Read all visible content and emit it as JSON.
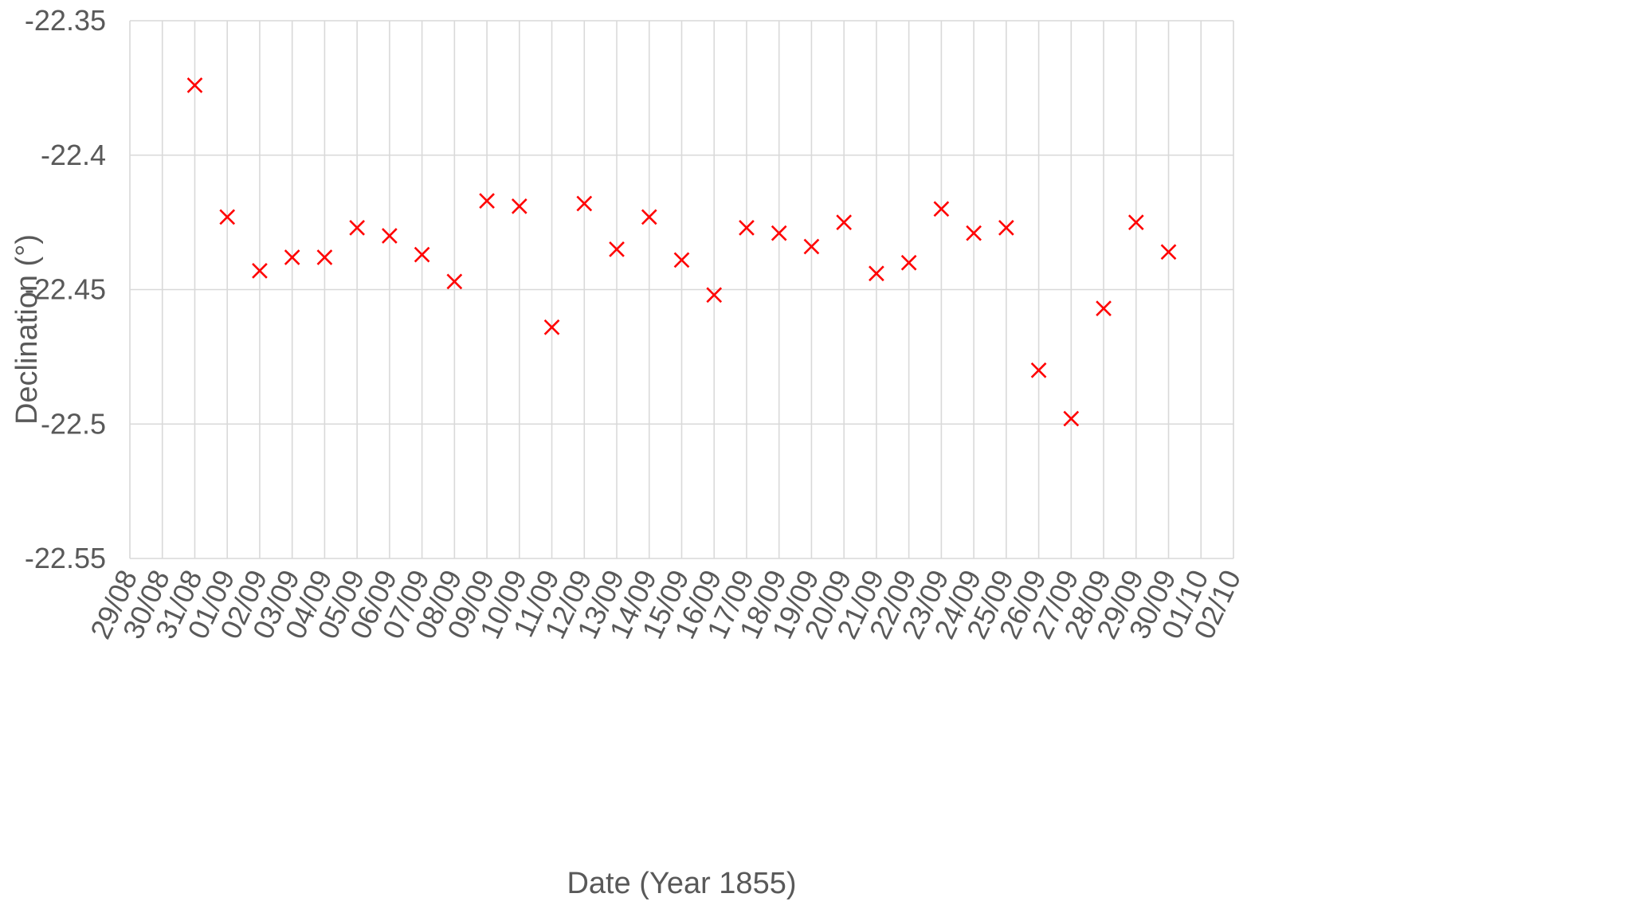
{
  "chart_data": {
    "type": "scatter",
    "title": "",
    "xlabel": "Date (Year 1855)",
    "ylabel": "Declination (°)",
    "x_ticks": [
      "29/08",
      "30/08",
      "31/08",
      "01/09",
      "02/09",
      "03/09",
      "04/09",
      "05/09",
      "06/09",
      "07/09",
      "08/09",
      "09/09",
      "10/09",
      "11/09",
      "12/09",
      "13/09",
      "14/09",
      "15/09",
      "16/09",
      "17/09",
      "18/09",
      "19/09",
      "20/09",
      "21/09",
      "22/09",
      "23/09",
      "24/09",
      "25/09",
      "26/09",
      "27/09",
      "28/09",
      "29/09",
      "30/09",
      "01/10",
      "02/10"
    ],
    "y_ticks": [
      "-22.35",
      "-22.4",
      "-22.45",
      "-22.5",
      "-22.55"
    ],
    "ylim": [
      -22.55,
      -22.35
    ],
    "grid": true,
    "legend": "none",
    "marker": "x",
    "marker_color": "#ff0000",
    "series": [
      {
        "points": [
          {
            "x": "31/08",
            "y": -22.374
          },
          {
            "x": "01/09",
            "y": -22.423
          },
          {
            "x": "02/09",
            "y": -22.443
          },
          {
            "x": "03/09",
            "y": -22.438
          },
          {
            "x": "04/09",
            "y": -22.438
          },
          {
            "x": "05/09",
            "y": -22.427
          },
          {
            "x": "06/09",
            "y": -22.43
          },
          {
            "x": "07/09",
            "y": -22.437
          },
          {
            "x": "08/09",
            "y": -22.447
          },
          {
            "x": "09/09",
            "y": -22.417
          },
          {
            "x": "10/09",
            "y": -22.419
          },
          {
            "x": "11/09",
            "y": -22.464
          },
          {
            "x": "12/09",
            "y": -22.418
          },
          {
            "x": "13/09",
            "y": -22.435
          },
          {
            "x": "14/09",
            "y": -22.423
          },
          {
            "x": "15/09",
            "y": -22.439
          },
          {
            "x": "16/09",
            "y": -22.452
          },
          {
            "x": "17/09",
            "y": -22.427
          },
          {
            "x": "18/09",
            "y": -22.429
          },
          {
            "x": "19/09",
            "y": -22.434
          },
          {
            "x": "20/09",
            "y": -22.425
          },
          {
            "x": "21/09",
            "y": -22.444
          },
          {
            "x": "22/09",
            "y": -22.44
          },
          {
            "x": "23/09",
            "y": -22.42
          },
          {
            "x": "24/09",
            "y": -22.429
          },
          {
            "x": "25/09",
            "y": -22.427
          },
          {
            "x": "26/09",
            "y": -22.48
          },
          {
            "x": "27/09",
            "y": -22.498
          },
          {
            "x": "28/09",
            "y": -22.457
          },
          {
            "x": "29/09",
            "y": -22.425
          },
          {
            "x": "30/09",
            "y": -22.436
          }
        ]
      }
    ]
  }
}
